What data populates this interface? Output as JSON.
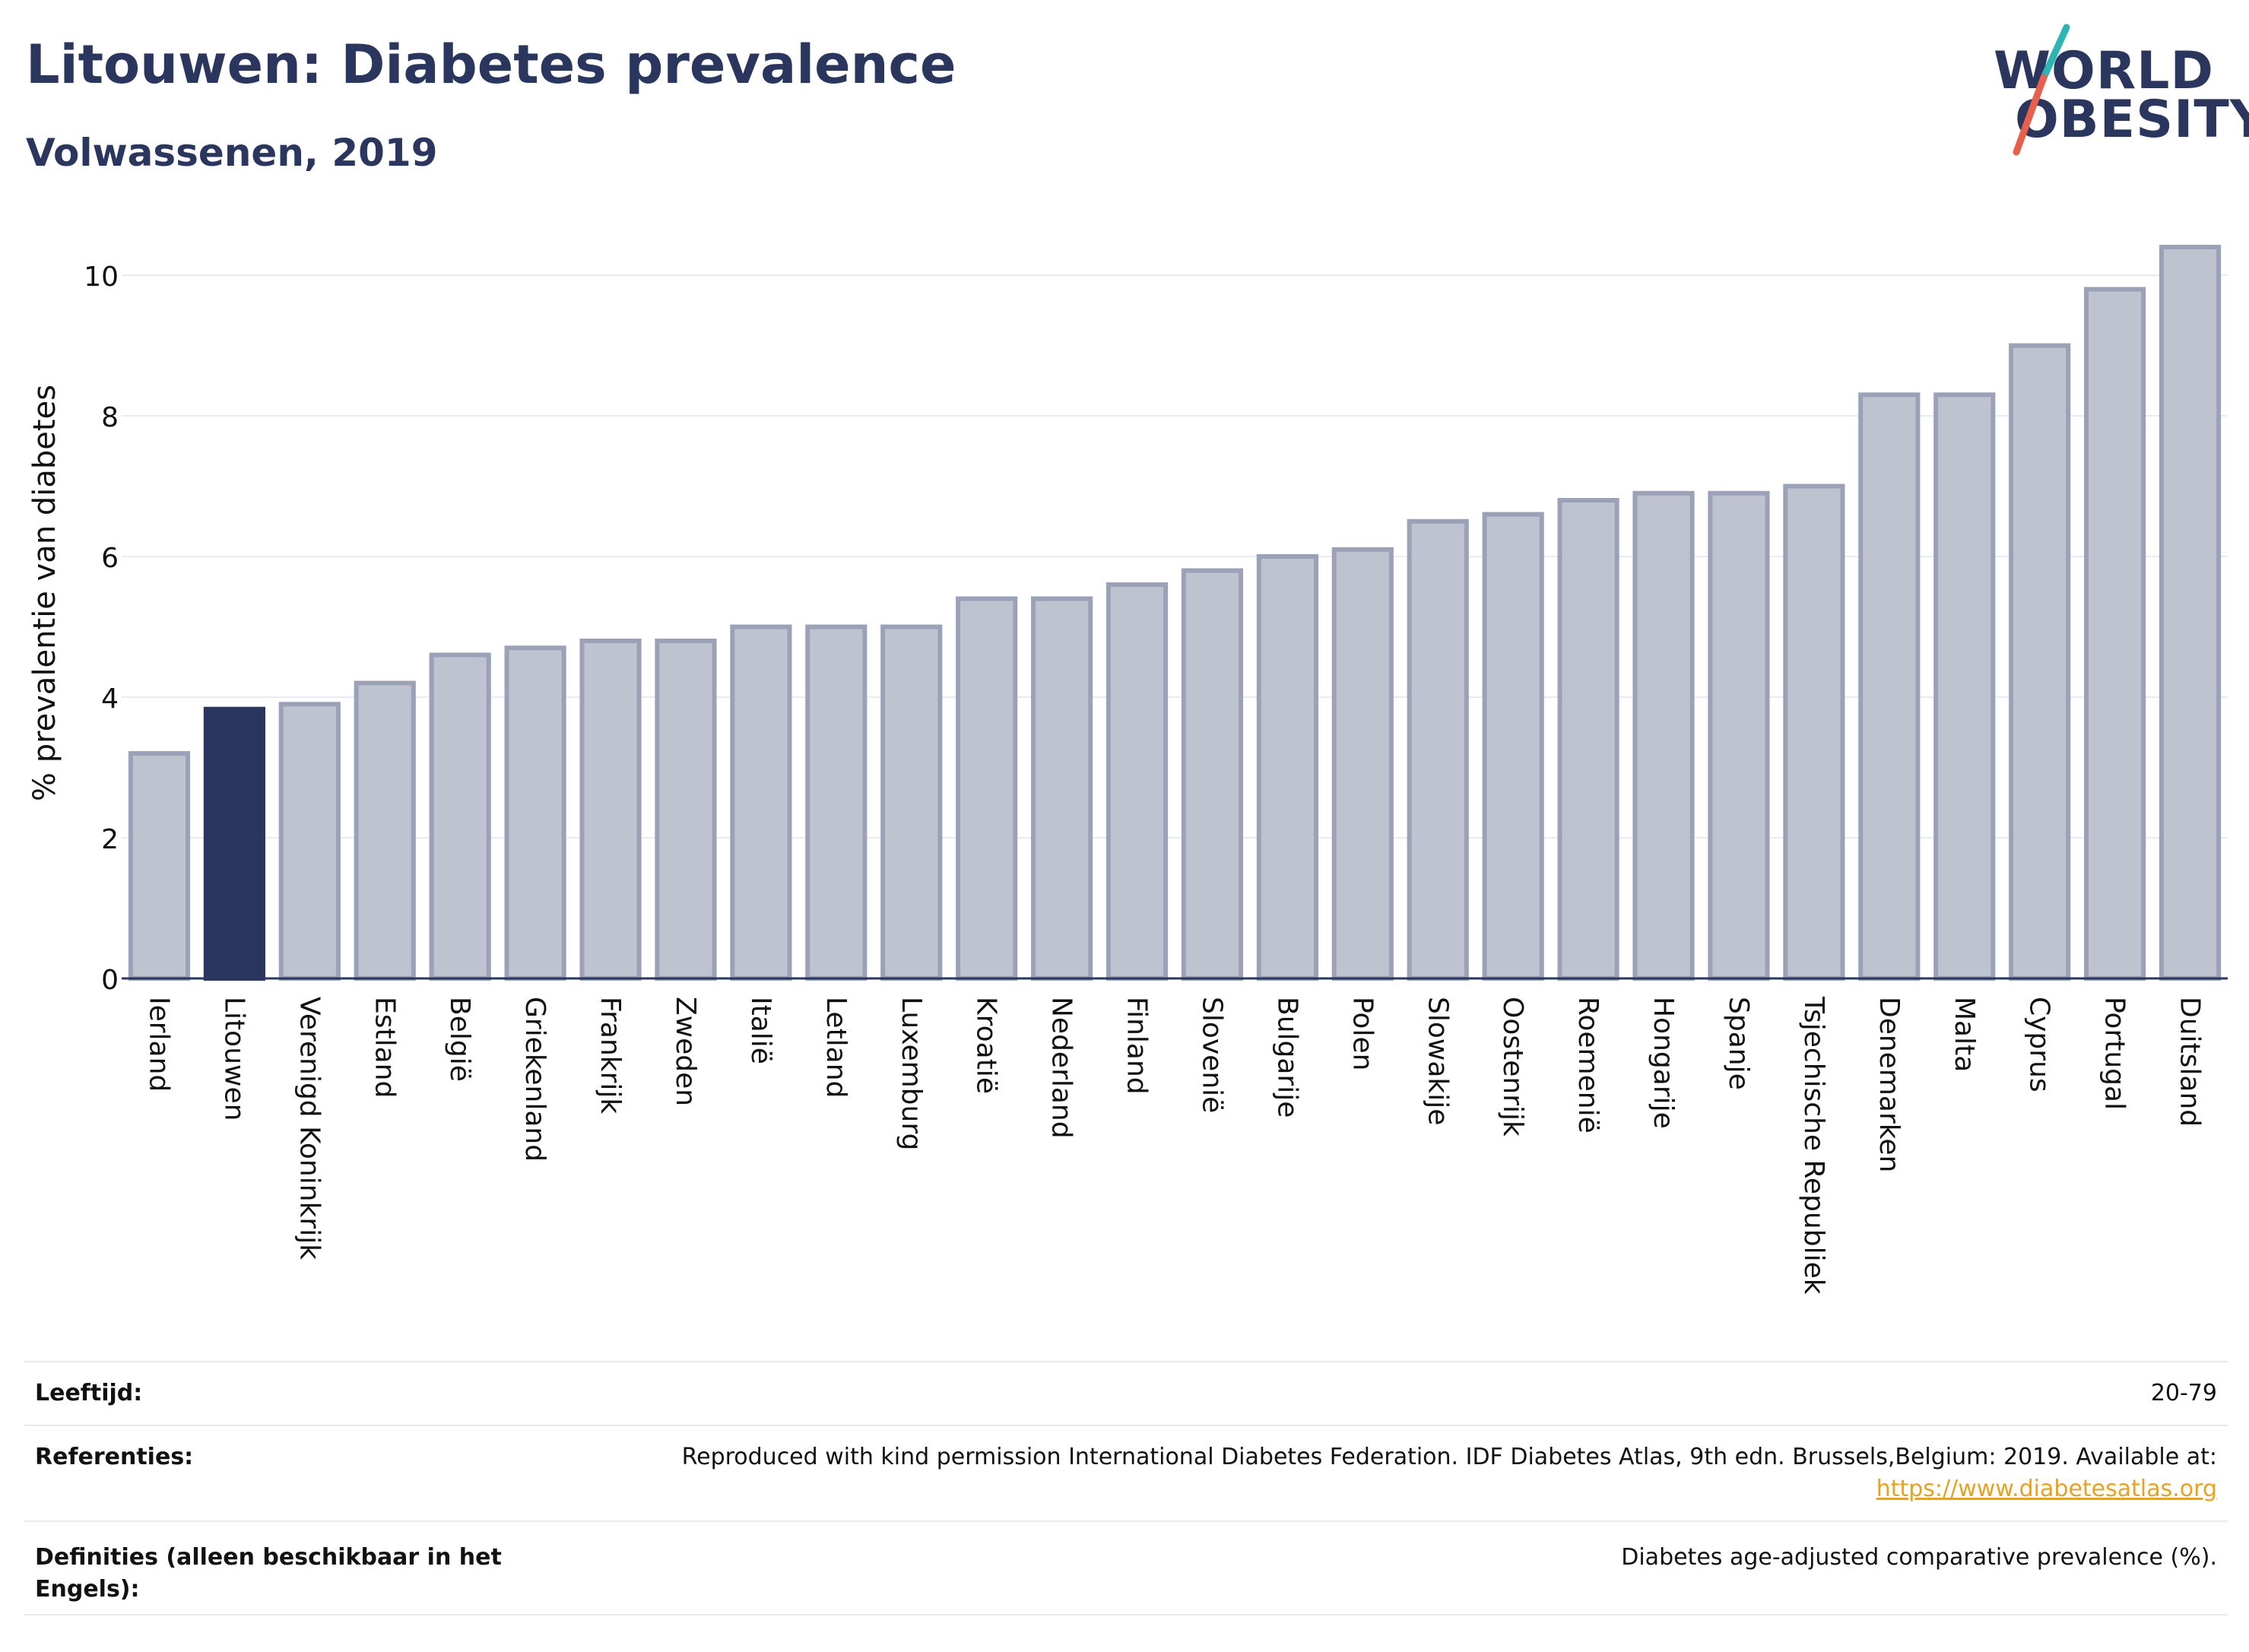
{
  "header": {
    "title": "Litouwen: Diabetes prevalence",
    "subtitle": "Volwassenen, 2019"
  },
  "logo": {
    "line1": "WORLD",
    "line2": "OBESITY",
    "slash_colors": [
      "#2bb5b5",
      "#e8604c"
    ]
  },
  "colors": {
    "bar": "#bfc3cf",
    "bar_stroke": "#9ba2b8",
    "highlight": "#2b365e",
    "grid": "#e9ebf0",
    "text": "#2b365e"
  },
  "chart_data": {
    "type": "bar",
    "ylabel": "% prevalentie van diabetes",
    "xlabel": "",
    "ylim": [
      0,
      10.7
    ],
    "yticks": [
      0,
      2,
      4,
      6,
      8,
      10
    ],
    "grid": true,
    "highlight": "Litouwen",
    "categories": [
      "Ierland",
      "Litouwen",
      "Verenigd Koninkrijk",
      "Estland",
      "België",
      "Griekenland",
      "Frankrijk",
      "Zweden",
      "Italië",
      "Letland",
      "Luxemburg",
      "Kroatië",
      "Nederland",
      "Finland",
      "Slovenië",
      "Bulgarije",
      "Polen",
      "Slowakije",
      "Oostenrijk",
      "Roemenië",
      "Hongarije",
      "Spanje",
      "Tsjechische Republiek",
      "Denemarken",
      "Malta",
      "Cyprus",
      "Portugal",
      "Duitsland"
    ],
    "values": [
      3.2,
      3.83,
      3.9,
      4.2,
      4.6,
      4.7,
      4.8,
      4.8,
      5.0,
      5.0,
      5.0,
      5.4,
      5.4,
      5.6,
      5.8,
      6.0,
      6.1,
      6.5,
      6.6,
      6.8,
      6.9,
      6.9,
      7.0,
      8.3,
      8.3,
      9.0,
      9.8,
      10.4
    ]
  },
  "info": [
    {
      "key": "Leeftijd:",
      "value": "20-79"
    },
    {
      "key": "Referenties:",
      "value": "Reproduced with kind permission International Diabetes Federation. IDF Diabetes Atlas, 9th edn. Brussels,Belgium: 2019. Available at:",
      "link": "https://www.diabetesatlas.org"
    },
    {
      "key": "Definities (alleen beschikbaar in het Engels):",
      "value": "Diabetes age-adjusted comparative prevalence (%)."
    }
  ]
}
